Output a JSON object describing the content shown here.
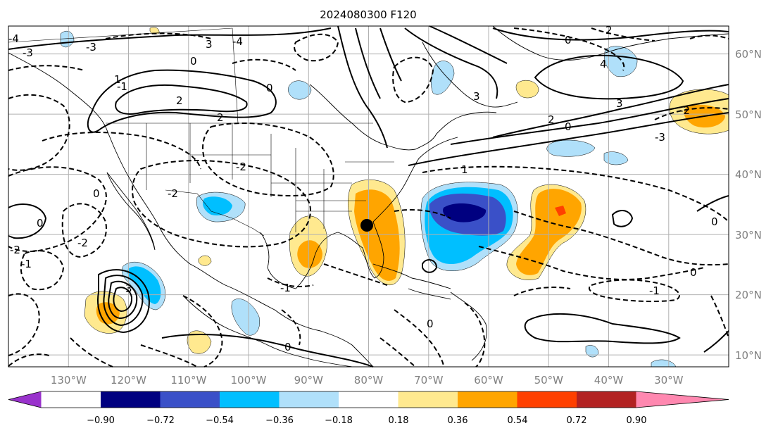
{
  "title": "2024080300 F120",
  "map": {
    "lat_labels": [
      "60°N",
      "50°N",
      "40°N",
      "30°N",
      "20°N",
      "10°N"
    ],
    "lon_labels": [
      "130°W",
      "120°W",
      "110°W",
      "100°W",
      "90°W",
      "80°W",
      "70°W",
      "60°W",
      "50°W",
      "40°W",
      "30°W"
    ],
    "contour_labels": [
      "4",
      "3",
      "2",
      "1",
      "0",
      "-1",
      "-2",
      "-3",
      "-4"
    ],
    "marker": "black-dot"
  },
  "colorbar": {
    "ticks": [
      "−0.90",
      "−0.72",
      "−0.54",
      "−0.36",
      "−0.18",
      "0.18",
      "0.36",
      "0.54",
      "0.72",
      "0.90"
    ],
    "colors": [
      "#9932cc",
      "#000080",
      "#3a50c8",
      "#00bfff",
      "#b0e0fa",
      "#ffffff",
      "#ffe98f",
      "#ffa500",
      "#ff4000",
      "#b22222",
      "#ff88b0"
    ]
  }
}
